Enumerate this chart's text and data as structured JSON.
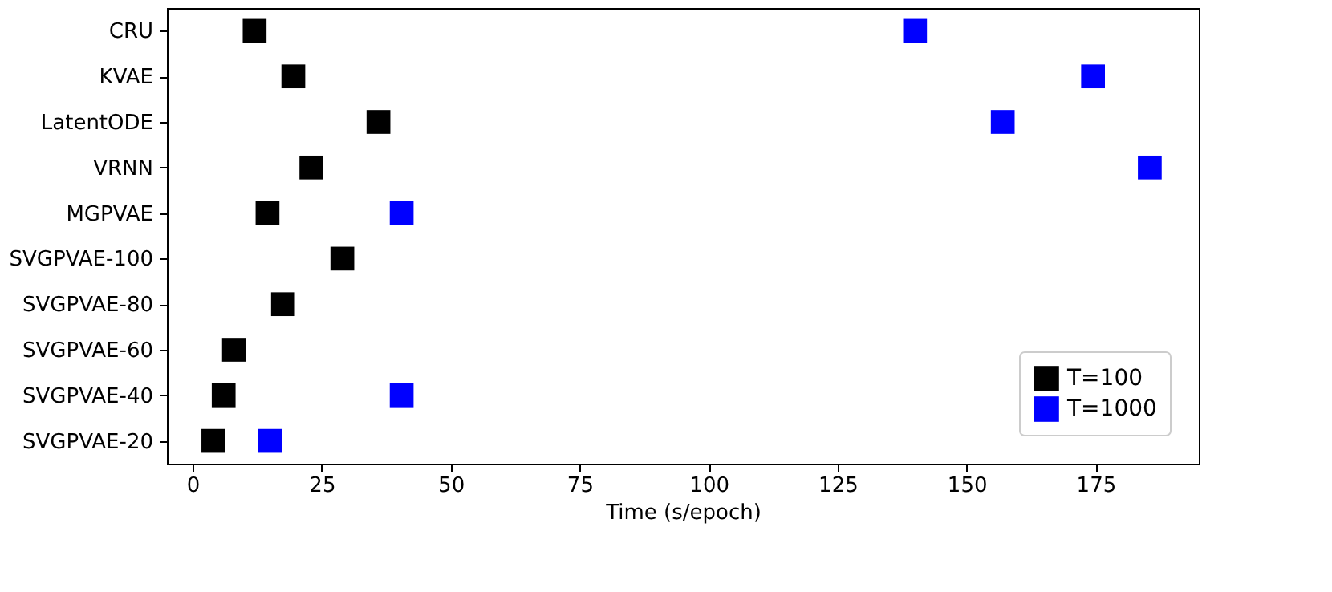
{
  "chart_data": {
    "type": "scatter",
    "xlabel": "Time (s/epoch)",
    "categories": [
      "CRU",
      "KVAE",
      "LatentODE",
      "VRNN",
      "MGPVAE",
      "SVGPVAE-100",
      "SVGPVAE-80",
      "SVGPVAE-60",
      "SVGPVAE-40",
      "SVGPVAE-20"
    ],
    "series": [
      {
        "name": "T=100",
        "color": "#000000",
        "values": [
          12,
          19.5,
          36,
          23,
          14.5,
          29,
          17.5,
          8,
          6,
          4
        ]
      },
      {
        "name": "T=1000",
        "color": "#0000ff",
        "values": [
          140,
          174.5,
          157,
          185.5,
          40.5,
          null,
          null,
          null,
          40.5,
          15
        ]
      }
    ],
    "xlim": [
      -5,
      195
    ],
    "xticks": [
      0,
      25,
      50,
      75,
      100,
      125,
      150,
      175
    ],
    "orientation": "horizontal",
    "marker": "square",
    "legend": "bottom right",
    "grid": false
  }
}
